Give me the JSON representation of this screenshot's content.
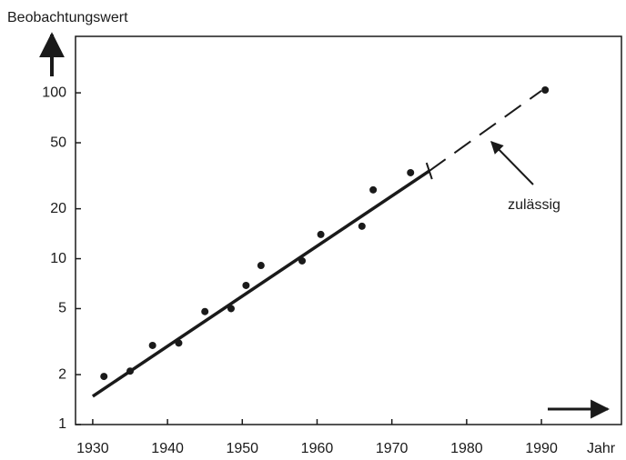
{
  "chart_data": {
    "type": "scatter",
    "y_label": "Beobachtungswert",
    "x_label": "Jahr",
    "annotation": "zulässig",
    "log_y": true,
    "color": "#1a1a1a",
    "x": [
      1931.5,
      1935,
      1938,
      1941.5,
      1945,
      1948.5,
      1950.5,
      1952.5,
      1958,
      1960.5,
      1966,
      1967.5,
      1972.5,
      1990.5
    ],
    "values": [
      1.95,
      2.1,
      3.0,
      3.1,
      4.8,
      5.0,
      6.9,
      9.1,
      9.7,
      14,
      15.7,
      26,
      33,
      104
    ],
    "fit": {
      "x": [
        1930,
        1975
      ],
      "values": [
        1.48,
        33.8
      ]
    },
    "extrapolation": {
      "x": [
        1975,
        1990
      ],
      "values": [
        33.8,
        103
      ]
    },
    "xlim": [
      1927.7,
      2000.7
    ],
    "ylim": [
      1,
      219
    ],
    "xticks": [
      1930,
      1940,
      1950,
      1960,
      1970,
      1980,
      1990
    ],
    "yticks": [
      1,
      2,
      5,
      10,
      20,
      50,
      100
    ]
  }
}
